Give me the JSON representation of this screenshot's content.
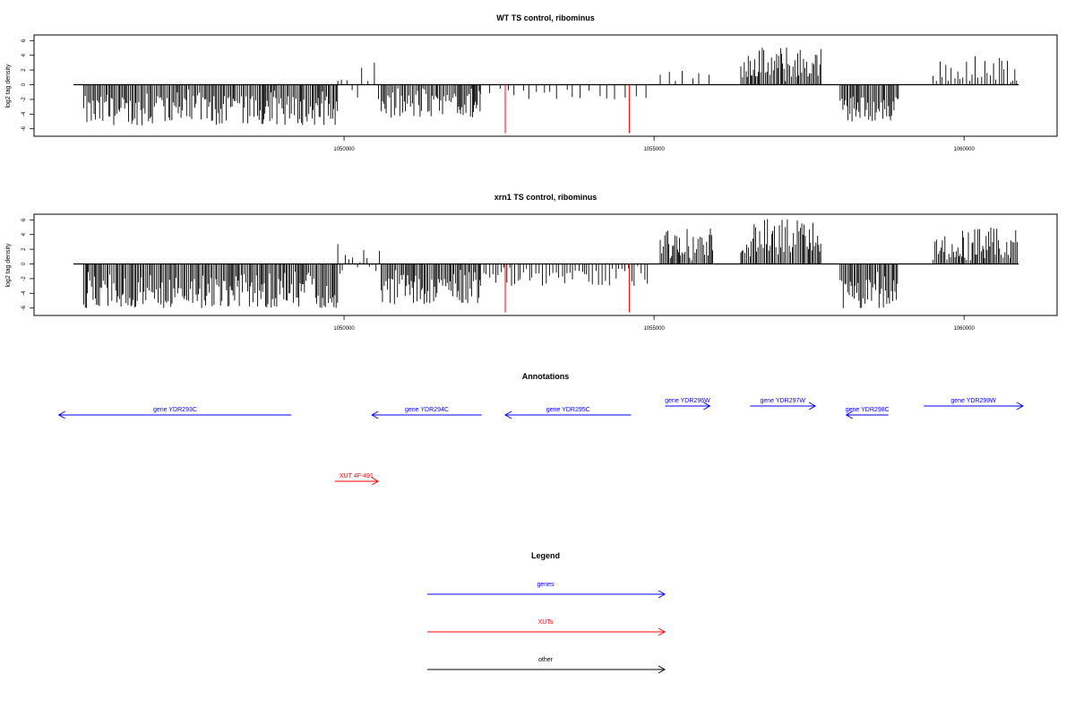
{
  "colors": {
    "density": "#000000",
    "highlight": "#ff0000",
    "genes": "#0000ff",
    "xuts": "#ff0000",
    "other": "#000000"
  },
  "panels": {
    "wt_title": "WT TS control, ribominus",
    "xrn1_title": "xrn1 TS control, ribominus",
    "ylabel": "log2 tag density",
    "yticks": [
      "-6",
      "-4",
      "-2",
      "0",
      "2",
      "4",
      "6"
    ],
    "xticks": [
      "1050000",
      "1055000",
      "1060000"
    ]
  },
  "annotations": {
    "title": "Annotations",
    "features": [
      {
        "name": "gene YDR293C",
        "type": "genes",
        "start": 1045400,
        "end": 1049150,
        "strand": "-",
        "row": 1
      },
      {
        "name": "gene YDR294C",
        "type": "genes",
        "start": 1050450,
        "end": 1052220,
        "strand": "-",
        "row": 1
      },
      {
        "name": "gene YDR295C",
        "type": "genes",
        "start": 1052600,
        "end": 1054630,
        "strand": "-",
        "row": 1
      },
      {
        "name": "gene YDR296W",
        "type": "genes",
        "start": 1055180,
        "end": 1055900,
        "strand": "+",
        "row": 0
      },
      {
        "name": "gene YDR297W",
        "type": "genes",
        "start": 1056550,
        "end": 1057600,
        "strand": "+",
        "row": 0
      },
      {
        "name": "gene YDR298C",
        "type": "genes",
        "start": 1058100,
        "end": 1058780,
        "strand": "-",
        "row": 1
      },
      {
        "name": "gene YDR299W",
        "type": "genes",
        "start": 1059350,
        "end": 1060950,
        "strand": "+",
        "row": 0
      },
      {
        "name": "XUT 4F-491",
        "type": "xuts",
        "start": 1049850,
        "end": 1050550,
        "strand": "+",
        "row": 2
      }
    ]
  },
  "legend": {
    "title": "Legend",
    "items": [
      {
        "label": "genes",
        "type": "genes"
      },
      {
        "label": "XUTs",
        "type": "xuts"
      },
      {
        "label": "other",
        "type": "other"
      }
    ]
  },
  "chart_data": [
    {
      "type": "bar",
      "title": "WT TS control, ribominus",
      "xlabel": "",
      "ylabel": "log2 tag density",
      "xlim": [
        1045000,
        1061500
      ],
      "ylim": [
        -7,
        7
      ],
      "yticks": [
        -6,
        -4,
        -2,
        0,
        2,
        4,
        6
      ],
      "xticks": [
        1050000,
        1055000,
        1060000
      ],
      "grid": false,
      "regions": [
        {
          "start": 1045800,
          "end": 1049900,
          "min": -5.5,
          "max": -1.5,
          "density": "high"
        },
        {
          "start": 1049900,
          "end": 1050600,
          "min": -2.5,
          "max": 3.0,
          "density": "low"
        },
        {
          "start": 1050600,
          "end": 1052200,
          "min": -4.5,
          "max": -1.0,
          "density": "high"
        },
        {
          "start": 1052200,
          "end": 1054900,
          "min": -2.0,
          "max": -0.5,
          "density": "sparse"
        },
        {
          "start": 1055100,
          "end": 1056000,
          "min": 0.5,
          "max": 2.0,
          "density": "sparse"
        },
        {
          "start": 1056400,
          "end": 1057700,
          "min": 1.0,
          "max": 5.2,
          "density": "high"
        },
        {
          "start": 1058000,
          "end": 1058950,
          "min": -5.0,
          "max": -1.5,
          "density": "high"
        },
        {
          "start": 1059500,
          "end": 1061100,
          "min": 0.5,
          "max": 4.0,
          "density": "medium"
        }
      ],
      "highlights": [
        {
          "x": 1052600,
          "y": -6.6
        },
        {
          "x": 1054600,
          "y": -6.6
        }
      ]
    },
    {
      "type": "bar",
      "title": "xrn1 TS control, ribominus",
      "xlabel": "",
      "ylabel": "log2 tag density",
      "xlim": [
        1045000,
        1061500
      ],
      "ylim": [
        -7,
        7
      ],
      "yticks": [
        -6,
        -4,
        -2,
        0,
        2,
        4,
        6
      ],
      "xticks": [
        1050000,
        1055000,
        1060000
      ],
      "grid": false,
      "regions": [
        {
          "start": 1045800,
          "end": 1049900,
          "min": -6.0,
          "max": -2.5,
          "density": "high"
        },
        {
          "start": 1049900,
          "end": 1050600,
          "min": -2.5,
          "max": 3.2,
          "density": "medium"
        },
        {
          "start": 1050600,
          "end": 1052200,
          "min": -5.5,
          "max": -1.5,
          "density": "high"
        },
        {
          "start": 1052200,
          "end": 1054900,
          "min": -3.0,
          "max": -0.5,
          "density": "medium"
        },
        {
          "start": 1055100,
          "end": 1055950,
          "min": 1.0,
          "max": 5.0,
          "density": "high"
        },
        {
          "start": 1056400,
          "end": 1057700,
          "min": 1.5,
          "max": 6.2,
          "density": "high"
        },
        {
          "start": 1058000,
          "end": 1058950,
          "min": -6.2,
          "max": -2.0,
          "density": "high"
        },
        {
          "start": 1059500,
          "end": 1061100,
          "min": 0.5,
          "max": 5.0,
          "density": "high"
        }
      ],
      "highlights": [
        {
          "x": 1052600,
          "y": -6.6
        },
        {
          "x": 1054600,
          "y": -6.6
        }
      ]
    }
  ]
}
